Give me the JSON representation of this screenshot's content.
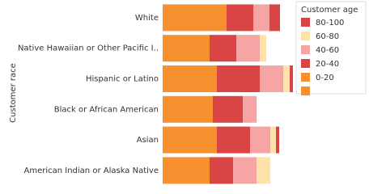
{
  "chart_data": {
    "type": "stacked-bar",
    "orientation": "horizontal",
    "y_label": "Customer race",
    "legend_title": "Customer age",
    "legend_position": "upper right",
    "categories": [
      "White",
      "Native Hawaiian or Other Pacific I..",
      "Hispanic or Latino",
      "Black or African American",
      "Asian",
      "American Indian or Alaska Native"
    ],
    "xlim": [
      0,
      165
    ],
    "series": [
      {
        "name": "80-100",
        "color": "#d94545",
        "values": [
          13,
          0,
          4,
          0,
          4,
          0
        ]
      },
      {
        "name": "60-80",
        "color": "#fde3a7",
        "values": [
          0,
          8,
          8,
          0,
          7,
          17
        ]
      },
      {
        "name": "40-60",
        "color": "#f6a5a5",
        "values": [
          20,
          29,
          29,
          17,
          25,
          29
        ]
      },
      {
        "name": "20-40",
        "color": "#d94545",
        "values": [
          33,
          33,
          53,
          37,
          41,
          29
        ]
      },
      {
        "name": "0-20",
        "color": "#f7902f",
        "values": [
          79,
          58,
          67,
          62,
          67,
          58
        ]
      },
      {
        "name": null,
        "color": "#f7902f",
        "values": [
          null,
          null,
          null,
          null,
          null,
          null
        ]
      }
    ]
  }
}
